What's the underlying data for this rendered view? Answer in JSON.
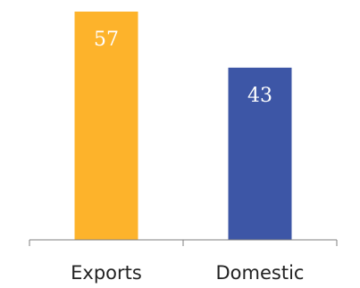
{
  "chart_data": {
    "type": "bar",
    "categories": [
      "Exports",
      "Domestic"
    ],
    "values": [
      57,
      43
    ],
    "value_labels": [
      "57",
      "43"
    ],
    "colors": [
      "#FDB32B",
      "#3D56A6"
    ],
    "ylim": [
      0,
      60
    ],
    "grid": false,
    "legend": "none"
  }
}
